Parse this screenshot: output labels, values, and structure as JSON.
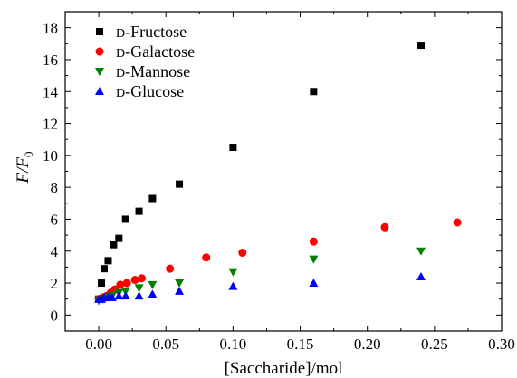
{
  "chart_data": {
    "type": "scatter",
    "title": "",
    "xlabel": "[Saccharide]/mol",
    "ylabel": "F/F0",
    "ylabel_parts": {
      "main": "F/F",
      "subscript": "0"
    },
    "xlim": [
      -0.025,
      0.3
    ],
    "ylim": [
      -1,
      19
    ],
    "x_ticks": [
      "0.00",
      "0.05",
      "0.10",
      "0.15",
      "0.20",
      "0.25",
      "0.30"
    ],
    "y_ticks": [
      "0",
      "2",
      "4",
      "6",
      "8",
      "10",
      "12",
      "14",
      "16",
      "18"
    ],
    "grid": false,
    "legend_position": "top-left",
    "series": [
      {
        "name": "D-Fructose",
        "prefix": "D",
        "suffix": "-Fructose",
        "marker": "square",
        "color": "#000000",
        "points": [
          [
            0.0,
            1.0
          ],
          [
            0.002,
            2.0
          ],
          [
            0.004,
            2.9
          ],
          [
            0.007,
            3.4
          ],
          [
            0.011,
            4.4
          ],
          [
            0.015,
            4.8
          ],
          [
            0.02,
            6.0
          ],
          [
            0.03,
            6.5
          ],
          [
            0.04,
            7.3
          ],
          [
            0.06,
            8.2
          ],
          [
            0.1,
            10.5
          ],
          [
            0.16,
            14.0
          ],
          [
            0.24,
            16.9
          ]
        ]
      },
      {
        "name": "D-Galactose",
        "prefix": "D",
        "suffix": "-Galactose",
        "marker": "circle",
        "color": "#ff0000",
        "points": [
          [
            0.0,
            1.0
          ],
          [
            0.003,
            1.1
          ],
          [
            0.006,
            1.2
          ],
          [
            0.009,
            1.4
          ],
          [
            0.012,
            1.6
          ],
          [
            0.016,
            1.9
          ],
          [
            0.021,
            2.0
          ],
          [
            0.027,
            2.2
          ],
          [
            0.032,
            2.3
          ],
          [
            0.053,
            2.9
          ],
          [
            0.08,
            3.6
          ],
          [
            0.107,
            3.9
          ],
          [
            0.16,
            4.6
          ],
          [
            0.213,
            5.5
          ],
          [
            0.267,
            5.8
          ]
        ]
      },
      {
        "name": "D-Mannose",
        "prefix": "D",
        "suffix": "-Mannose",
        "marker": "triangle-down",
        "color": "#008000",
        "points": [
          [
            0.0,
            0.9
          ],
          [
            0.003,
            1.0
          ],
          [
            0.006,
            1.1
          ],
          [
            0.01,
            1.2
          ],
          [
            0.015,
            1.4
          ],
          [
            0.02,
            1.5
          ],
          [
            0.03,
            1.7
          ],
          [
            0.04,
            1.9
          ],
          [
            0.06,
            2.0
          ],
          [
            0.1,
            2.7
          ],
          [
            0.16,
            3.5
          ],
          [
            0.24,
            4.0
          ]
        ]
      },
      {
        "name": "D-Glucose",
        "prefix": "D",
        "suffix": "-Glucose",
        "marker": "triangle-up",
        "color": "#0000ff",
        "points": [
          [
            0.0,
            1.0
          ],
          [
            0.002,
            1.0
          ],
          [
            0.004,
            1.1
          ],
          [
            0.007,
            1.1
          ],
          [
            0.01,
            1.1
          ],
          [
            0.015,
            1.2
          ],
          [
            0.02,
            1.2
          ],
          [
            0.03,
            1.2
          ],
          [
            0.04,
            1.3
          ],
          [
            0.06,
            1.5
          ],
          [
            0.1,
            1.8
          ],
          [
            0.16,
            2.0
          ],
          [
            0.24,
            2.4
          ]
        ]
      }
    ]
  }
}
